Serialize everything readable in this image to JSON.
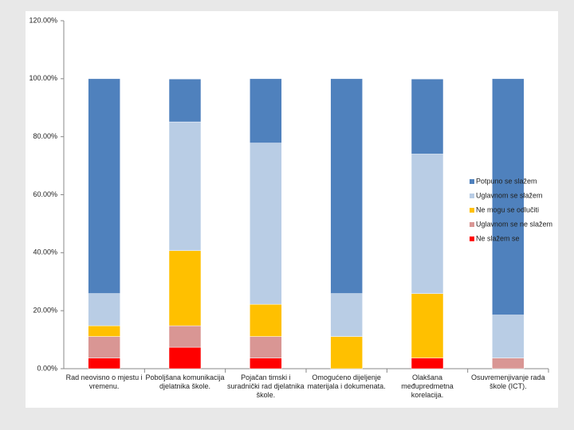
{
  "chart_data": {
    "type": "stacked-bar",
    "categories": [
      "Rad neovisno o mjestu i vremenu.",
      "Poboljšana komunikacija djelatnika škole.",
      "Pojačan timski i suradnički rad djelatnika škole.",
      "Omogućeno dijeljenje materijala i dokumenata.",
      "Olakšana međupredmetna korelacija.",
      "Osuvremenjivanje rada škole (ICT)."
    ],
    "series": [
      {
        "name": "Potpuno se slažem",
        "color": "#4f81bd",
        "values": [
          74.1,
          14.8,
          22.2,
          74.1,
          25.9,
          81.5
        ]
      },
      {
        "name": "Uglavnom se slažem",
        "color": "#b9cde5",
        "values": [
          11.1,
          44.4,
          55.6,
          14.8,
          48.1,
          14.8
        ]
      },
      {
        "name": "Ne mogu se odlučiti",
        "color": "#ffc000",
        "values": [
          3.7,
          25.9,
          11.1,
          11.1,
          22.2,
          0
        ]
      },
      {
        "name": "Uglavnom se ne slažem",
        "color": "#d99694",
        "values": [
          7.4,
          7.4,
          7.4,
          0,
          0,
          3.7
        ]
      },
      {
        "name": "Ne slažem se",
        "color": "#ff0000",
        "values": [
          3.7,
          7.4,
          3.7,
          0,
          3.7,
          0
        ]
      }
    ],
    "ylim": [
      0,
      120
    ],
    "yticks": [
      {
        "value": 0,
        "label": "0.00%"
      },
      {
        "value": 20,
        "label": "20.00%"
      },
      {
        "value": 40,
        "label": "40.00%"
      },
      {
        "value": 60,
        "label": "60.00%"
      },
      {
        "value": 80,
        "label": "80.00%"
      },
      {
        "value": 100,
        "label": "100.00%"
      },
      {
        "value": 120,
        "label": "120.00%"
      }
    ],
    "legend": "right"
  }
}
